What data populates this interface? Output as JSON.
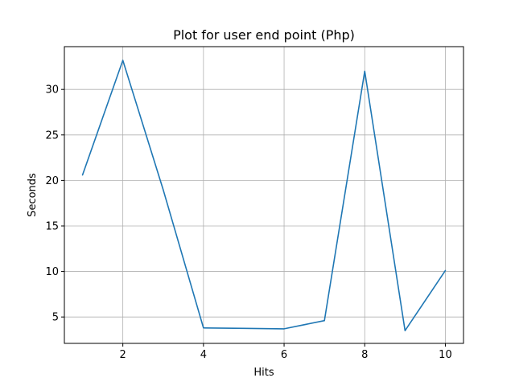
{
  "chart_data": {
    "type": "line",
    "title": "Plot for user end point (Php)",
    "xlabel": "Hits",
    "ylabel": "Seconds",
    "xlim": [
      0.55,
      10.45
    ],
    "ylim": [
      2.1,
      34.7
    ],
    "x_ticks": [
      2,
      4,
      6,
      8,
      10
    ],
    "y_ticks": [
      5,
      10,
      15,
      20,
      25,
      30
    ],
    "grid": true,
    "series": [
      {
        "color": "#1f77b4",
        "x": [
          1,
          2,
          3,
          4,
          5,
          6,
          7,
          8,
          9,
          10
        ],
        "y": [
          20.6,
          33.2,
          19.0,
          3.8,
          3.75,
          3.7,
          4.6,
          32.0,
          3.5,
          10.1
        ]
      }
    ]
  }
}
